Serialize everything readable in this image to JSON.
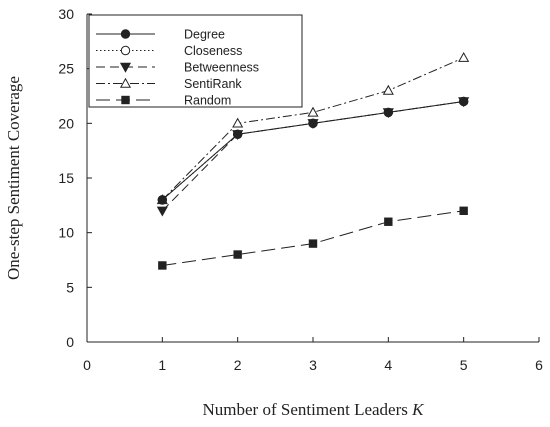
{
  "chart_data": {
    "type": "line",
    "xlabel": "Number of Sentiment Leaders K",
    "xlabel_main": "Number of Sentiment Leaders ",
    "xlabel_var": "K",
    "ylabel": "One-step Sentiment Coverage",
    "xlim": [
      0,
      6
    ],
    "ylim": [
      0,
      30
    ],
    "x_ticks": [
      0,
      1,
      2,
      3,
      4,
      5,
      6
    ],
    "y_ticks": [
      0,
      5,
      10,
      15,
      20,
      25,
      30
    ],
    "grid": false,
    "legend_position": "top-left",
    "x": [
      1,
      2,
      3,
      4,
      5
    ],
    "series": [
      {
        "name": "Degree",
        "values": [
          13,
          19,
          20,
          21,
          22
        ],
        "marker": "filled-circle",
        "dash": "solid",
        "color": "#222222"
      },
      {
        "name": "Closeness",
        "values": [
          13,
          19,
          20,
          21,
          22
        ],
        "marker": "open-circle",
        "dash": "dotted",
        "color": "#222222"
      },
      {
        "name": "Betweenness",
        "values": [
          12,
          19,
          20,
          21,
          22
        ],
        "marker": "filled-triangle-down",
        "dash": "dashed",
        "color": "#222222"
      },
      {
        "name": "SentiRank",
        "values": [
          13,
          20,
          21,
          23,
          26
        ],
        "marker": "open-triangle-up",
        "dash": "dash-dot",
        "color": "#222222"
      },
      {
        "name": "Random",
        "values": [
          7,
          8,
          9,
          11,
          12
        ],
        "marker": "filled-square",
        "dash": "long-dash",
        "color": "#222222"
      }
    ]
  }
}
